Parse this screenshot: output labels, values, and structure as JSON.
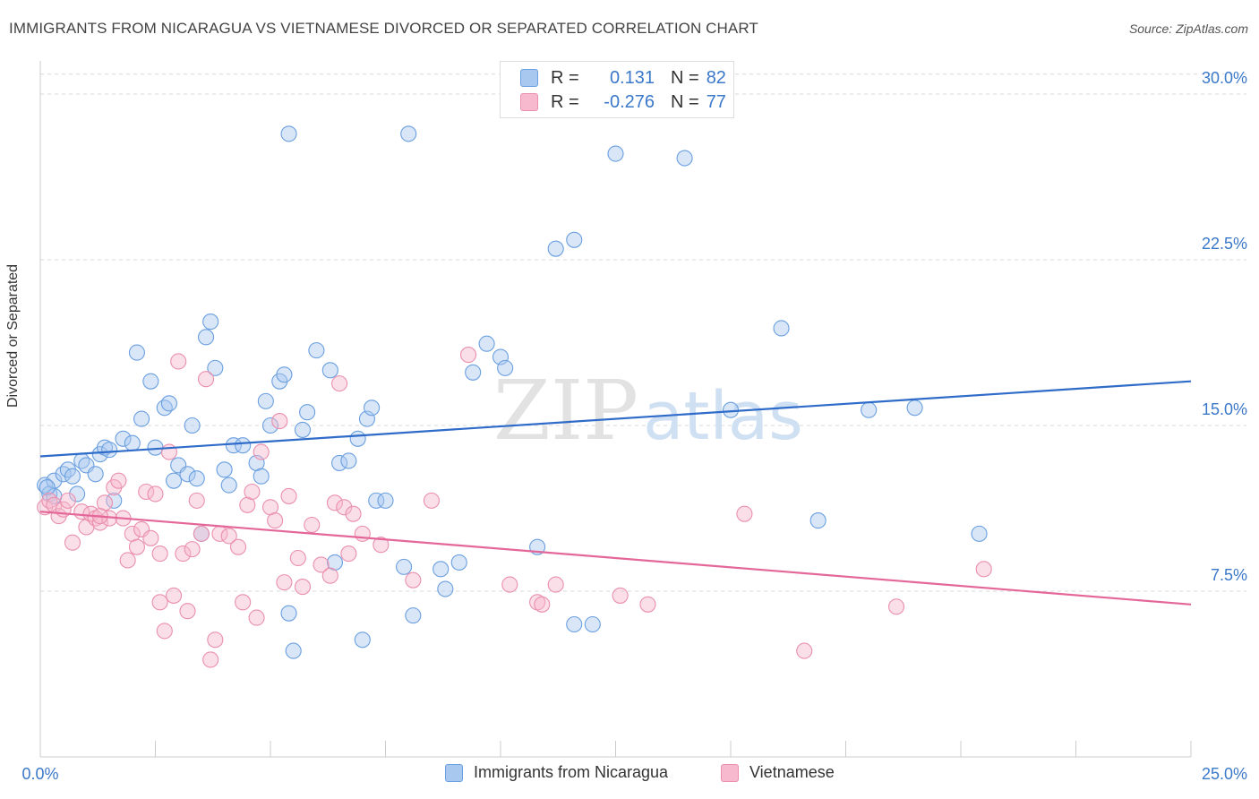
{
  "title": "IMMIGRANTS FROM NICARAGUA VS VIETNAMESE DIVORCED OR SEPARATED CORRELATION CHART",
  "source": "Source: ZipAtlas.com",
  "watermark": {
    "zip": "ZIP",
    "atlas": "atlas"
  },
  "legend": {
    "r_label": "R =",
    "n_label": "N =",
    "series": [
      {
        "name": "Immigrants from Nicaragua",
        "r": "0.131",
        "n": "82",
        "color": "#a9c8f0",
        "edge": "#6a9fe0",
        "line": "#2f6cc9"
      },
      {
        "name": "Vietnamese",
        "r": "-0.276",
        "n": "77",
        "color": "#f7b9cd",
        "edge": "#ea8fae",
        "line": "#e4679a"
      }
    ]
  },
  "chart_data": {
    "type": "scatter",
    "title": "IMMIGRANTS FROM NICARAGUA VS VIETNAMESE DIVORCED OR SEPARATED CORRELATION CHART",
    "xlabel": "",
    "ylabel": "Divorced or Separated",
    "xlim": [
      0,
      25
    ],
    "ylim": [
      0,
      31.5
    ],
    "x_tick_labels": [
      "0.0%",
      "25.0%"
    ],
    "y_ticks": [
      7.5,
      15.0,
      22.5,
      30.0
    ],
    "y_tick_labels": [
      "7.5%",
      "15.0%",
      "22.5%",
      "30.0%"
    ],
    "grid": true,
    "series": [
      {
        "name": "Immigrants from Nicaragua",
        "trend": [
          [
            0,
            13.6
          ],
          [
            25,
            17.0
          ]
        ],
        "points": [
          [
            0.1,
            12.3
          ],
          [
            0.2,
            11.9
          ],
          [
            0.3,
            12.5
          ],
          [
            0.5,
            12.8
          ],
          [
            0.6,
            13.0
          ],
          [
            0.7,
            12.7
          ],
          [
            0.8,
            11.9
          ],
          [
            0.9,
            13.4
          ],
          [
            1.0,
            13.2
          ],
          [
            1.2,
            12.8
          ],
          [
            1.3,
            13.7
          ],
          [
            1.4,
            14.0
          ],
          [
            1.5,
            13.9
          ],
          [
            1.6,
            11.6
          ],
          [
            1.8,
            14.4
          ],
          [
            2.0,
            14.2
          ],
          [
            2.1,
            18.3
          ],
          [
            2.2,
            15.3
          ],
          [
            2.4,
            17.0
          ],
          [
            2.5,
            14.0
          ],
          [
            2.7,
            15.8
          ],
          [
            2.8,
            16.0
          ],
          [
            2.9,
            12.5
          ],
          [
            3.0,
            13.2
          ],
          [
            3.2,
            12.8
          ],
          [
            3.4,
            12.6
          ],
          [
            3.3,
            15.0
          ],
          [
            3.5,
            10.1
          ],
          [
            3.6,
            19.0
          ],
          [
            3.7,
            19.7
          ],
          [
            3.8,
            17.6
          ],
          [
            4.0,
            13.0
          ],
          [
            4.1,
            12.3
          ],
          [
            4.2,
            14.1
          ],
          [
            4.4,
            14.1
          ],
          [
            4.7,
            13.3
          ],
          [
            4.8,
            12.7
          ],
          [
            4.9,
            16.1
          ],
          [
            5.0,
            15.0
          ],
          [
            5.2,
            17.0
          ],
          [
            5.3,
            17.3
          ],
          [
            5.4,
            6.5
          ],
          [
            5.5,
            4.8
          ],
          [
            5.7,
            14.8
          ],
          [
            5.8,
            15.6
          ],
          [
            6.0,
            18.4
          ],
          [
            5.4,
            28.2
          ],
          [
            6.3,
            17.5
          ],
          [
            6.4,
            8.8
          ],
          [
            6.5,
            13.3
          ],
          [
            6.7,
            13.4
          ],
          [
            6.9,
            14.4
          ],
          [
            7.0,
            5.3
          ],
          [
            7.1,
            15.3
          ],
          [
            7.2,
            15.8
          ],
          [
            7.3,
            11.6
          ],
          [
            7.5,
            11.6
          ],
          [
            7.9,
            8.6
          ],
          [
            8.1,
            6.4
          ],
          [
            8.7,
            8.5
          ],
          [
            8.8,
            7.6
          ],
          [
            9.1,
            8.8
          ],
          [
            9.4,
            17.4
          ],
          [
            9.7,
            18.7
          ],
          [
            8.0,
            28.2
          ],
          [
            10.0,
            18.1
          ],
          [
            10.1,
            17.6
          ],
          [
            10.8,
            9.5
          ],
          [
            11.2,
            23.0
          ],
          [
            11.6,
            23.4
          ],
          [
            11.6,
            6.0
          ],
          [
            12.0,
            6.0
          ],
          [
            12.5,
            27.3
          ],
          [
            14.0,
            27.1
          ],
          [
            15.0,
            15.7
          ],
          [
            16.1,
            19.4
          ],
          [
            16.9,
            10.7
          ],
          [
            19.0,
            15.8
          ],
          [
            20.4,
            10.1
          ],
          [
            18.0,
            15.7
          ],
          [
            0.3,
            11.8
          ],
          [
            0.15,
            12.2
          ]
        ]
      },
      {
        "name": "Vietnamese",
        "trend": [
          [
            0,
            11.1
          ],
          [
            25,
            6.9
          ]
        ],
        "points": [
          [
            0.1,
            11.3
          ],
          [
            0.2,
            11.6
          ],
          [
            0.3,
            11.4
          ],
          [
            0.4,
            10.9
          ],
          [
            0.5,
            11.2
          ],
          [
            0.6,
            11.6
          ],
          [
            0.7,
            9.7
          ],
          [
            0.9,
            11.1
          ],
          [
            1.0,
            10.4
          ],
          [
            1.1,
            11.0
          ],
          [
            1.2,
            10.8
          ],
          [
            1.3,
            10.6
          ],
          [
            1.4,
            11.5
          ],
          [
            1.5,
            10.8
          ],
          [
            1.6,
            12.2
          ],
          [
            1.7,
            12.5
          ],
          [
            1.8,
            10.8
          ],
          [
            1.9,
            8.9
          ],
          [
            2.0,
            10.1
          ],
          [
            2.1,
            9.5
          ],
          [
            2.2,
            10.3
          ],
          [
            2.3,
            12.0
          ],
          [
            2.4,
            9.9
          ],
          [
            2.5,
            11.9
          ],
          [
            2.6,
            7.0
          ],
          [
            2.7,
            5.7
          ],
          [
            2.8,
            13.8
          ],
          [
            2.9,
            7.3
          ],
          [
            3.0,
            17.9
          ],
          [
            3.1,
            9.2
          ],
          [
            3.2,
            6.6
          ],
          [
            3.3,
            9.4
          ],
          [
            3.4,
            11.6
          ],
          [
            3.5,
            10.1
          ],
          [
            3.6,
            17.1
          ],
          [
            3.7,
            4.4
          ],
          [
            3.8,
            5.3
          ],
          [
            3.9,
            10.1
          ],
          [
            4.1,
            10.0
          ],
          [
            4.3,
            9.5
          ],
          [
            4.4,
            7.0
          ],
          [
            4.5,
            11.4
          ],
          [
            4.6,
            12.0
          ],
          [
            4.7,
            6.3
          ],
          [
            4.8,
            13.8
          ],
          [
            5.0,
            11.3
          ],
          [
            5.1,
            10.7
          ],
          [
            5.2,
            15.2
          ],
          [
            5.3,
            7.9
          ],
          [
            5.4,
            11.8
          ],
          [
            5.6,
            9.0
          ],
          [
            5.7,
            7.7
          ],
          [
            5.9,
            10.5
          ],
          [
            6.1,
            8.7
          ],
          [
            6.3,
            8.2
          ],
          [
            6.4,
            11.5
          ],
          [
            6.5,
            16.9
          ],
          [
            6.6,
            11.3
          ],
          [
            6.7,
            9.2
          ],
          [
            6.8,
            11.0
          ],
          [
            7.0,
            10.1
          ],
          [
            7.4,
            9.6
          ],
          [
            8.1,
            8.0
          ],
          [
            8.5,
            11.6
          ],
          [
            9.3,
            18.2
          ],
          [
            10.2,
            7.8
          ],
          [
            10.8,
            7.0
          ],
          [
            10.9,
            6.9
          ],
          [
            11.2,
            7.8
          ],
          [
            12.6,
            7.3
          ],
          [
            13.2,
            6.9
          ],
          [
            15.3,
            11.0
          ],
          [
            16.6,
            4.8
          ],
          [
            18.6,
            6.8
          ],
          [
            20.5,
            8.5
          ],
          [
            1.3,
            10.9
          ],
          [
            2.6,
            9.2
          ]
        ]
      }
    ]
  }
}
